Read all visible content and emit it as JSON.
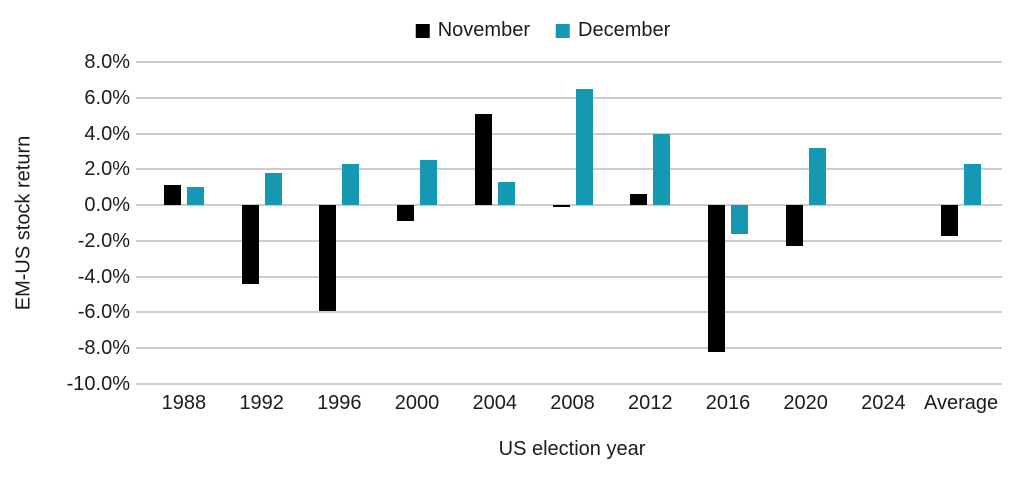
{
  "chart_data": {
    "type": "bar",
    "title": "",
    "xlabel": "US election year",
    "ylabel": "EM-US stock return",
    "categories": [
      "1988",
      "1992",
      "1996",
      "2000",
      "2004",
      "2008",
      "2012",
      "2016",
      "2020",
      "2024",
      "Average"
    ],
    "series": [
      {
        "name": "November",
        "color": "#000000",
        "values": [
          1.1,
          -4.4,
          -5.9,
          -0.9,
          5.1,
          -0.1,
          0.6,
          -8.2,
          -2.3,
          null,
          -1.7
        ]
      },
      {
        "name": "December",
        "color": "#1598b2",
        "values": [
          1.0,
          1.8,
          2.3,
          2.5,
          1.3,
          6.5,
          4.0,
          -1.6,
          3.2,
          null,
          2.3
        ]
      }
    ],
    "ylim": [
      -10,
      8
    ],
    "ytick_step": 2,
    "ytick_labels": [
      "8.0%",
      "6.0%",
      "4.0%",
      "2.0%",
      "0.0%",
      "-2.0%",
      "-4.0%",
      "-6.0%",
      "-8.0%",
      "-10.0%"
    ],
    "grid": true,
    "legend_position": "top-center",
    "gridline_color": "#cdcdcd",
    "text_color": "#1c1c1c"
  }
}
